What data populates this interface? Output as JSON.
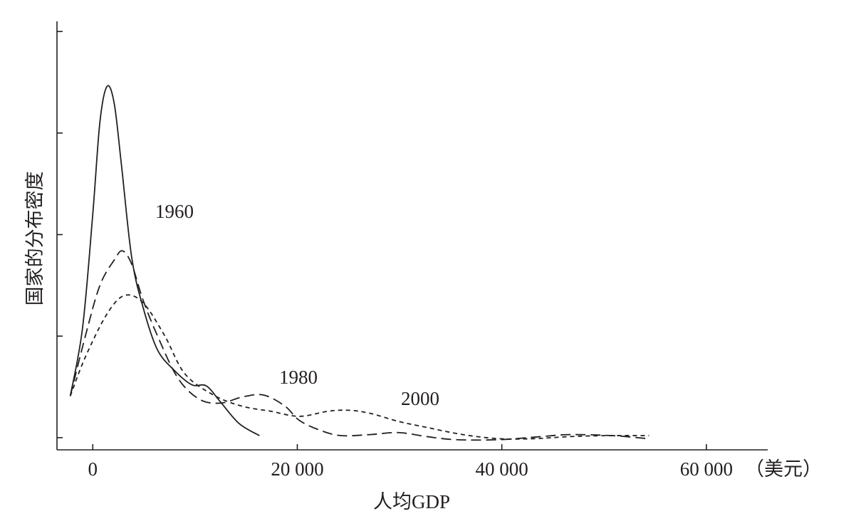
{
  "chart_data": {
    "type": "line",
    "x_label": "人均GDP",
    "x_unit": "（美元）",
    "y_label": "国家的分布密度",
    "xlim": [
      -3500,
      66000
    ],
    "ylim": [
      -0.12,
      4.1
    ],
    "xticks": [
      0,
      {
        "value": 20000,
        "label": "20 000"
      },
      {
        "value": 40000,
        "label": "40 000"
      },
      {
        "value": 60000,
        "label": "60 000"
      }
    ],
    "yticks": [
      0,
      1,
      2,
      3,
      4
    ],
    "series": [
      {
        "name": "1960",
        "color": "#231f20",
        "dash": "solid",
        "x": [
          -2200,
          -1000,
          0,
          700,
          1400,
          2100,
          2800,
          3800,
          4900,
          6300,
          8000,
          9700,
          11100,
          12500,
          14300,
          16300
        ],
        "values": [
          0.41,
          1.08,
          2.2,
          3.11,
          3.46,
          3.29,
          2.69,
          1.78,
          1.29,
          0.87,
          0.66,
          0.52,
          0.51,
          0.35,
          0.14,
          0.02
        ]
      },
      {
        "name": "1980",
        "color": "#231f20",
        "dash": "long",
        "x": [
          -2200,
          -700,
          700,
          2100,
          2900,
          3800,
          4900,
          6300,
          8300,
          10400,
          12500,
          14600,
          16700,
          18800,
          20200,
          22300,
          24300,
          27100,
          29900,
          32700,
          35500,
          39700,
          43800,
          46600,
          50800,
          54300
        ],
        "values": [
          0.41,
          1.01,
          1.5,
          1.75,
          1.84,
          1.71,
          1.36,
          1.01,
          0.59,
          0.38,
          0.34,
          0.4,
          0.42,
          0.31,
          0.17,
          0.07,
          0.02,
          0.03,
          0.05,
          0.01,
          -0.02,
          -0.02,
          0.01,
          0.03,
          0.02,
          -0.01
        ]
      },
      {
        "name": "2000",
        "color": "#231f20",
        "dash": "short",
        "x": [
          -2200,
          -700,
          1400,
          3100,
          4900,
          7000,
          9000,
          11800,
          14600,
          17400,
          20200,
          23000,
          25000,
          27100,
          29900,
          32700,
          36200,
          39700,
          43100,
          46600,
          50100,
          54400
        ],
        "values": [
          0.41,
          0.8,
          1.22,
          1.4,
          1.33,
          1.01,
          0.63,
          0.42,
          0.31,
          0.26,
          0.21,
          0.26,
          0.27,
          0.24,
          0.16,
          0.1,
          0.03,
          -0.01,
          -0.01,
          0.01,
          0.02,
          0.02
        ]
      }
    ]
  }
}
